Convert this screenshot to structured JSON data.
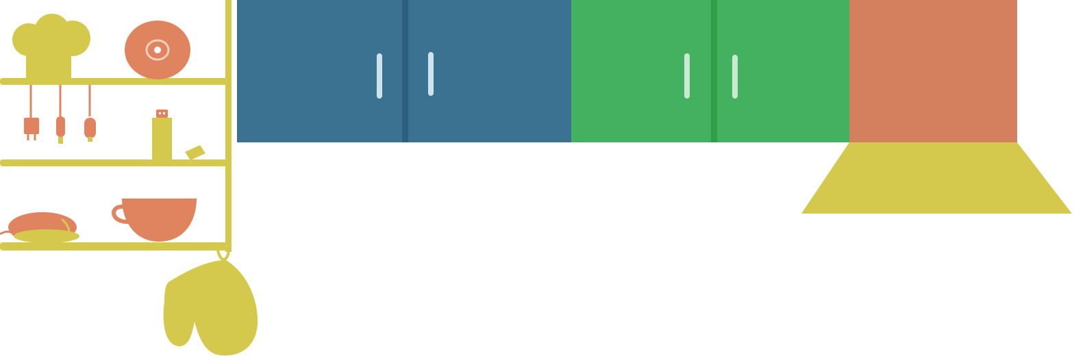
{
  "scene": {
    "colors": {
      "background": "#ffffff",
      "shelf_yellow": "#d4c94c",
      "accent_orange": "#e0835f",
      "cabinet_blue": "#3b7191",
      "cabinet_blue_dark": "#2f5f80",
      "cabinet_green": "#44b160",
      "cabinet_green_dark": "#2e9e49",
      "range_hood_orange": "#d4805e",
      "handle_light": "#cfe3ea",
      "handle_light_green": "#c9ead0"
    },
    "objects": [
      "chef-hat",
      "plate",
      "hanging-utensils",
      "jar",
      "cup",
      "loaf",
      "oven-mitt",
      "blue-wall-cabinet",
      "green-wall-cabinet",
      "range-hood"
    ]
  }
}
